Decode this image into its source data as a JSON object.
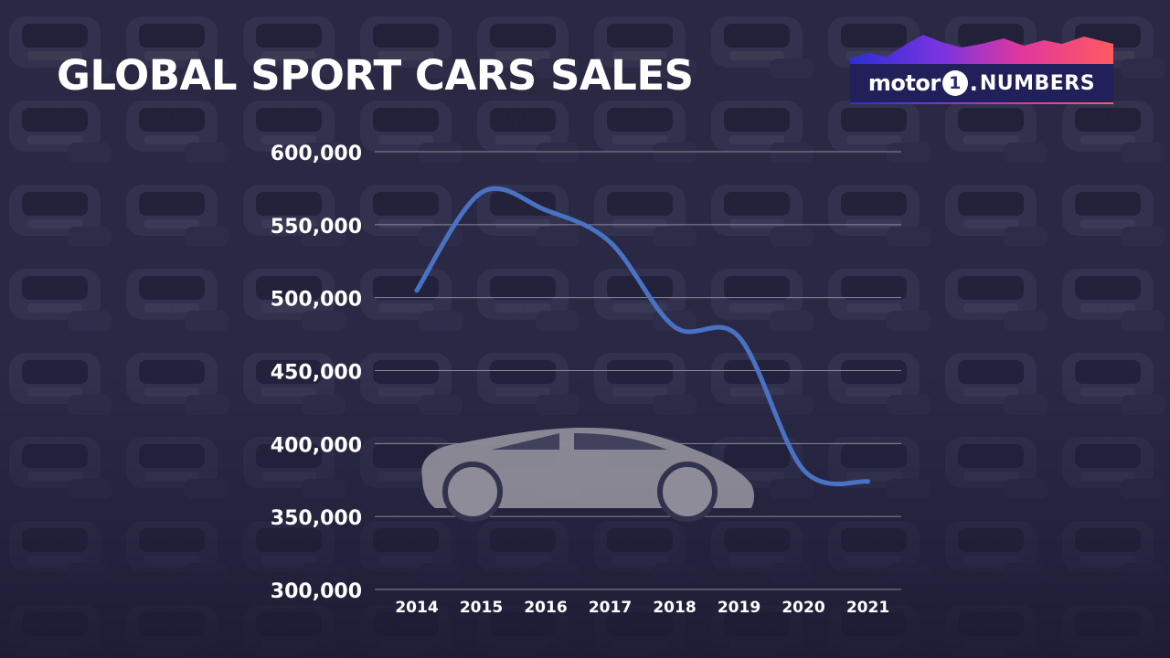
{
  "page": {
    "title": "GLOBAL SPORT CARS SALES"
  },
  "logo": {
    "brand_word": "motor",
    "brand_numeral": "1",
    "brand_dot": ".",
    "brand_suffix": "NUMBERS"
  },
  "colors": {
    "line": "#4a72c4",
    "background": "#2b2a45",
    "text": "#ffffff",
    "grid": "#8a899c",
    "car_silhouette": "#8d8c98"
  },
  "chart_data": {
    "type": "line",
    "title": "GLOBAL SPORT CARS SALES",
    "xlabel": "",
    "ylabel": "",
    "categories": [
      "2014",
      "2015",
      "2016",
      "2017",
      "2018",
      "2019",
      "2020",
      "2021"
    ],
    "series": [
      {
        "values": [
          505000,
          572000,
          560000,
          538000,
          480000,
          473000,
          382000,
          374000
        ]
      }
    ],
    "ylim": [
      300000,
      600000
    ],
    "yticks": [
      300000,
      350000,
      400000,
      450000,
      500000,
      550000,
      600000
    ],
    "ytick_labels": [
      "300,000",
      "350,000",
      "400,000",
      "450,000",
      "500,000",
      "550,000",
      "600,000"
    ],
    "grid": true,
    "legend": "none"
  }
}
